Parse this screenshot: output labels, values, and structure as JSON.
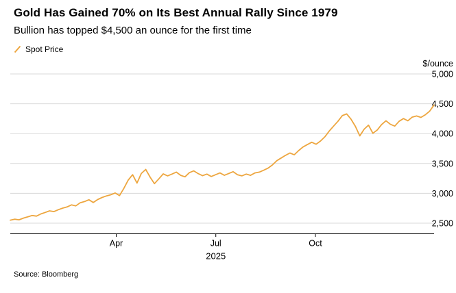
{
  "source_note": "Source: Bloomberg",
  "theme": {
    "accent": "#EDA63F",
    "grid": "#D8D8D8",
    "axis": "#000000",
    "text": "#000000"
  },
  "chart_data": {
    "type": "line",
    "title": "Gold Has Gained 70% on Its Best Annual Rally Since 1979",
    "subtitle": "Bullion has topped $4,500 an ounce for the first time",
    "legend_label": "Spot Price",
    "legend_position": "top-left",
    "y_axis_label": "$/ounce",
    "y_axis_side": "right",
    "grid": "horizontal",
    "ylim": [
      2500,
      5000
    ],
    "y_ticks": [
      {
        "value": 5000,
        "label": "5,000"
      },
      {
        "value": 4500,
        "label": "4,500"
      },
      {
        "value": 4000,
        "label": "4,000"
      },
      {
        "value": 3500,
        "label": "3,500"
      },
      {
        "value": 3000,
        "label": "3,000"
      },
      {
        "value": 2500,
        "label": "2,500"
      }
    ],
    "x_ticks": [
      {
        "label": "Apr",
        "pos": 0.25
      },
      {
        "label": "Jul",
        "pos": 0.485
      },
      {
        "label": "Oct",
        "pos": 0.72
      }
    ],
    "x_axis_year": "2025",
    "series": [
      {
        "name": "Spot Price",
        "values": [
          2550,
          2566,
          2556,
          2585,
          2607,
          2628,
          2618,
          2655,
          2680,
          2706,
          2694,
          2726,
          2752,
          2772,
          2806,
          2790,
          2842,
          2862,
          2892,
          2846,
          2896,
          2930,
          2956,
          2976,
          3006,
          2962,
          3082,
          3222,
          3312,
          3172,
          3332,
          3400,
          3272,
          3162,
          3242,
          3326,
          3292,
          3322,
          3356,
          3302,
          3276,
          3346,
          3376,
          3330,
          3296,
          3322,
          3282,
          3312,
          3342,
          3302,
          3332,
          3362,
          3312,
          3292,
          3322,
          3302,
          3342,
          3356,
          3386,
          3422,
          3476,
          3546,
          3592,
          3636,
          3676,
          3646,
          3716,
          3776,
          3816,
          3856,
          3822,
          3876,
          3946,
          4042,
          4126,
          4206,
          4302,
          4330,
          4242,
          4122,
          3962,
          4076,
          4142,
          4006,
          4062,
          4152,
          4216,
          4156,
          4126,
          4206,
          4252,
          4216,
          4276,
          4296,
          4272,
          4316,
          4376,
          4480
        ]
      }
    ]
  }
}
